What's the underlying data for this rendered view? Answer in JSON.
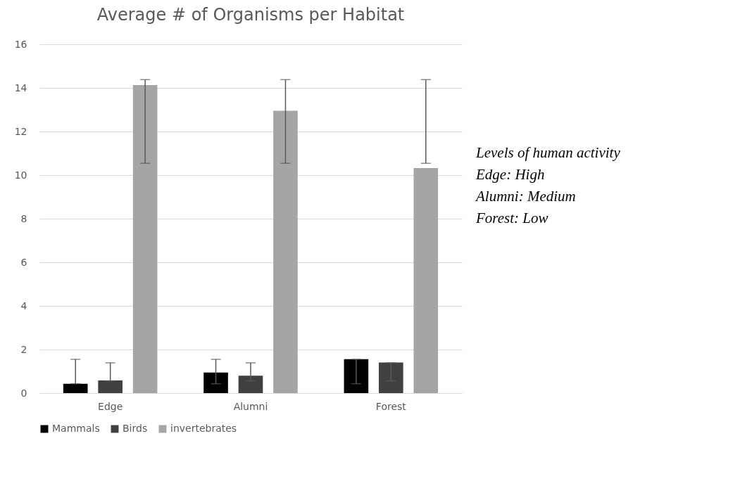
{
  "chart_data": {
    "type": "bar",
    "title": "Average # of Organisms per Habitat",
    "categories": [
      "Edge",
      "Alumni",
      "Forest"
    ],
    "series": [
      {
        "name": "Mammals",
        "color": "#000000",
        "values": [
          0.43,
          0.94,
          1.56
        ],
        "errors": [
          [
            0.43,
            1.55
          ],
          [
            0.43,
            1.55
          ],
          [
            0.43,
            1.55
          ]
        ]
      },
      {
        "name": "Birds",
        "color": "#404040",
        "values": [
          0.58,
          0.8,
          1.4
        ],
        "errors": [
          [
            0.56,
            1.39
          ],
          [
            0.56,
            1.39
          ],
          [
            0.56,
            1.39
          ]
        ]
      },
      {
        "name": "invertebrates",
        "color": "#a5a5a5",
        "values": [
          14.13,
          12.95,
          10.32
        ],
        "errors": [
          [
            10.54,
            14.38
          ],
          [
            10.54,
            14.38
          ],
          [
            10.54,
            14.38
          ]
        ]
      }
    ],
    "ylim": [
      0,
      16
    ],
    "yticks": [
      0,
      2,
      4,
      6,
      8,
      10,
      12,
      14,
      16
    ],
    "grid": "y",
    "legend": "bottom",
    "annotations": [
      "Levels of human activity",
      "Edge: High",
      "Alumni: Medium",
      "Forest: Low"
    ]
  }
}
